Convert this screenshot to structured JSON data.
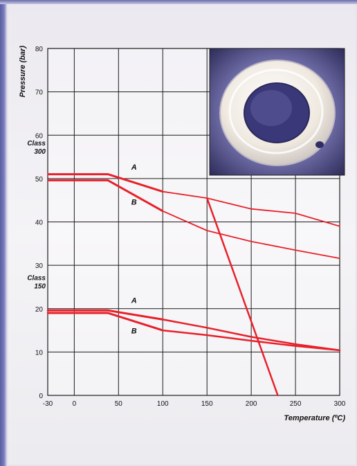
{
  "chart_data": {
    "type": "line",
    "xlabel": "Temperature (ºC)",
    "ylabel": "Pressure (bar)",
    "xlim": [
      -30,
      300
    ],
    "ylim": [
      0,
      80
    ],
    "x_ticks": [
      "-30",
      "0",
      "50",
      "100",
      "150",
      "200",
      "250",
      "300"
    ],
    "y_ticks": [
      "0",
      "10",
      "20",
      "30",
      "40",
      "50",
      "60",
      "70",
      "80"
    ],
    "grid": true,
    "class_labels": [
      {
        "text": "Class 300",
        "near_y": 56.5
      },
      {
        "text": "Class 150",
        "near_y": 25.5
      }
    ],
    "series_labels": [
      {
        "text": "A",
        "x": 55,
        "y": 52.5
      },
      {
        "text": "B",
        "x": 55,
        "y": 44.5
      },
      {
        "text": "A",
        "x": 55,
        "y": 21.8
      },
      {
        "text": "B",
        "x": 55,
        "y": 14.8
      }
    ],
    "series": [
      {
        "values": [
          [
            -30,
            51
          ],
          [
            38,
            51
          ],
          [
            100,
            47
          ],
          [
            150,
            45.5
          ],
          [
            200,
            43
          ],
          [
            250,
            42
          ],
          [
            300,
            39
          ]
        ]
      },
      {
        "values": [
          [
            -30,
            49.6
          ],
          [
            38,
            49.6
          ],
          [
            100,
            42.5
          ],
          [
            150,
            38
          ],
          [
            200,
            35.5
          ],
          [
            250,
            33.5
          ],
          [
            300,
            31.6
          ]
        ]
      },
      {
        "values": [
          [
            150,
            45.5
          ],
          [
            230,
            0
          ]
        ]
      },
      {
        "values": [
          [
            -30,
            19.6
          ],
          [
            38,
            19.6
          ],
          [
            100,
            17.5
          ],
          [
            150,
            15.6
          ],
          [
            200,
            13.5
          ],
          [
            250,
            11.8
          ],
          [
            300,
            10.4
          ]
        ]
      },
      {
        "values": [
          [
            -30,
            19
          ],
          [
            38,
            19
          ],
          [
            100,
            15
          ],
          [
            150,
            13.9
          ],
          [
            200,
            12.6
          ],
          [
            250,
            11.4
          ],
          [
            300,
            10.4
          ]
        ]
      }
    ],
    "series_color": "#e8202a",
    "grid_color": "#1a1a1a"
  }
}
